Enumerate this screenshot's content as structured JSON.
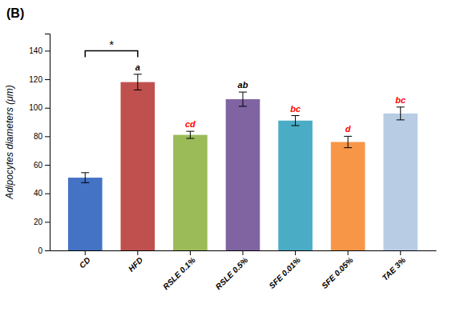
{
  "chart_data": {
    "type": "bar",
    "title": "(B)",
    "categories": [
      "CD",
      "HFD",
      "RSLE 0.1%",
      "RSLE 0.5%",
      "SFE 0.01%",
      "SFE 0.05%",
      "TAE 3%"
    ],
    "values": [
      51,
      118,
      81,
      106,
      91,
      76,
      96
    ],
    "errors": [
      3.5,
      5.5,
      2.5,
      5.0,
      3.5,
      4.0,
      4.5
    ],
    "colors": [
      "#4472C4",
      "#C0504D",
      "#9BBB59",
      "#8064A2",
      "#4BACC6",
      "#F79646",
      "#B8CCE4"
    ],
    "y_label": "Adipocytes diameters (μm)",
    "ylim": [
      0,
      152
    ],
    "yticks": [
      0,
      20,
      40,
      60,
      80,
      100,
      120,
      140
    ],
    "annotations": [
      {
        "text": "a",
        "category": "HFD",
        "color": "black"
      },
      {
        "text": "cd",
        "category": "RSLE 0.1%",
        "color": "red"
      },
      {
        "text": "ab",
        "category": "RSLE 0.5%",
        "color": "black"
      },
      {
        "text": "bc",
        "category": "SFE 0.01%",
        "color": "red"
      },
      {
        "text": "d",
        "category": "SFE 0.05%",
        "color": "red"
      },
      {
        "text": "bc",
        "category": "TAE 3%",
        "color": "red"
      }
    ],
    "bracket": {
      "from": "CD",
      "to": "HFD",
      "y": 140,
      "text": "*"
    },
    "grid": false
  }
}
